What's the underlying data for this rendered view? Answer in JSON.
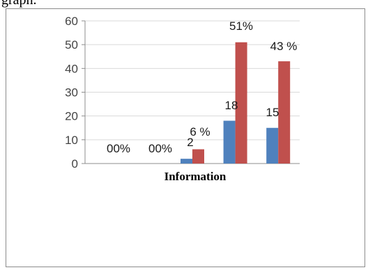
{
  "caption_fragment": "graph.",
  "chart_data": {
    "type": "bar",
    "title": "",
    "xlabel": "Information",
    "ylabel": "",
    "ylim": [
      0,
      60
    ],
    "yticks": [
      0,
      10,
      20,
      30,
      40,
      50,
      60
    ],
    "categories": [
      "",
      "",
      "",
      "",
      ""
    ],
    "series": [
      {
        "values": [
          0,
          0,
          2,
          18,
          15
        ],
        "labels": [
          "00%",
          "00%",
          "2",
          "18",
          "15"
        ]
      },
      {
        "values": [
          0,
          0,
          6,
          51,
          43
        ],
        "labels": [
          "",
          "",
          "6 %",
          "51%",
          "43 %"
        ]
      }
    ],
    "grid": true,
    "legend": "none"
  },
  "colors": {
    "series_1": "#4f81bd",
    "series_2": "#c0504d",
    "grid": "#d9d9d9",
    "axis": "#8c8c8c"
  }
}
